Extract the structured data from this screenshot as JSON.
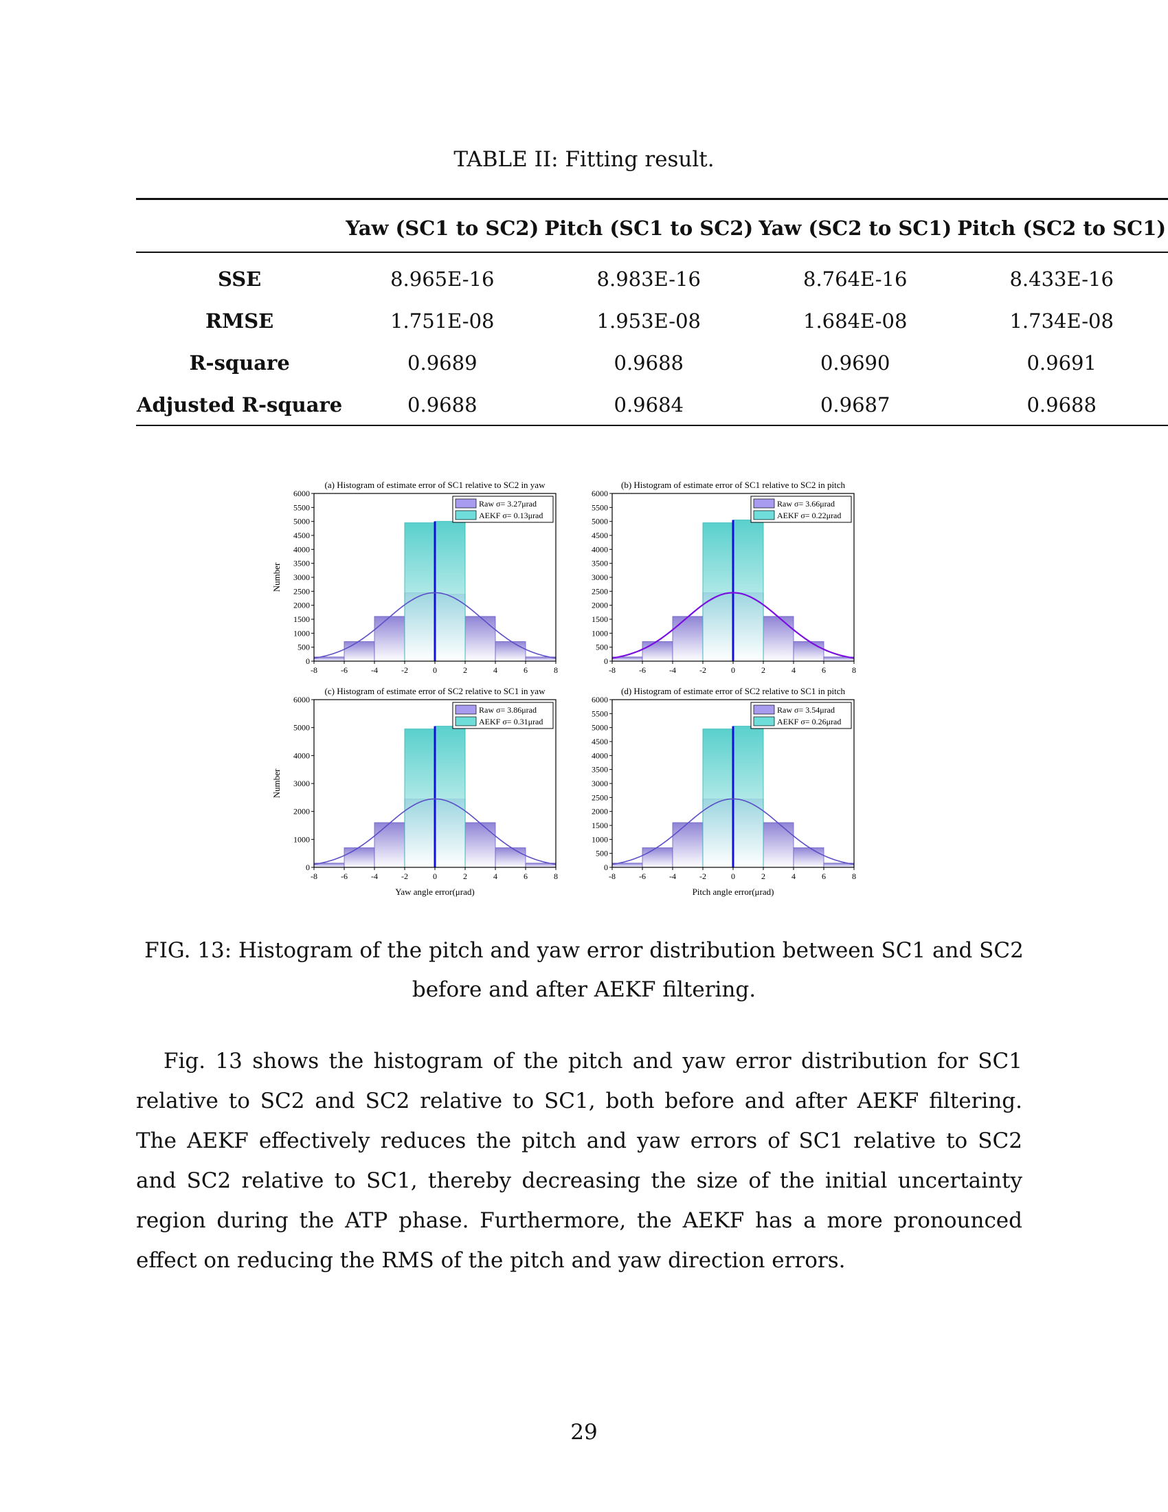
{
  "table": {
    "caption": "TABLE II: Fitting result.",
    "headers": [
      "",
      "Yaw (SC1 to SC2)",
      "Pitch (SC1 to SC2)",
      "Yaw (SC2 to SC1)",
      "Pitch (SC2 to SC1)"
    ],
    "rows": [
      {
        "label": "SSE",
        "values": [
          "8.965E-16",
          "8.983E-16",
          "8.764E-16",
          "8.433E-16"
        ]
      },
      {
        "label": "RMSE",
        "values": [
          "1.751E-08",
          "1.953E-08",
          "1.684E-08",
          "1.734E-08"
        ]
      },
      {
        "label": "R-square",
        "values": [
          "0.9689",
          "0.9688",
          "0.9690",
          "0.9691"
        ]
      },
      {
        "label": "Adjusted R-square",
        "values": [
          "0.9688",
          "0.9684",
          "0.9687",
          "0.9688"
        ]
      }
    ]
  },
  "chart_data": [
    {
      "type": "bar",
      "title": "(a) Histogram of estimate error of SC1 relative to SC2 in yaw",
      "ylabel": "Number",
      "xlabel": "",
      "xlim": [
        -8,
        8
      ],
      "ylim": [
        0,
        6000
      ],
      "xticks": [
        "-8",
        "-6",
        "-4",
        "-2",
        "0",
        "2",
        "4",
        "6",
        "8"
      ],
      "yticks": [
        "0",
        "500",
        "1000",
        "1500",
        "2000",
        "2500",
        "3000",
        "3500",
        "4000",
        "4500",
        "5000",
        "5500",
        "6000"
      ],
      "legend": [
        "Raw σ= 3.27μrad",
        "AEKF σ= 0.13μrad"
      ],
      "legend_position": "top-right",
      "series": [
        {
          "name": "Raw",
          "bin_edges": [
            -8,
            -6,
            -4,
            -2,
            0,
            2,
            4,
            6,
            8
          ],
          "values": [
            150,
            700,
            1600,
            2450,
            2400,
            1600,
            700,
            150
          ],
          "fit": "normal",
          "fit_peak": 2450
        },
        {
          "name": "AEKF",
          "bin_edges": [
            -2,
            0,
            2
          ],
          "values": [
            4950,
            5000
          ]
        }
      ]
    },
    {
      "type": "bar",
      "title": "(b) Histogram of estimate error of SC1 relative to SC2 in pitch",
      "ylabel": "",
      "xlabel": "",
      "xlim": [
        -8,
        8
      ],
      "ylim": [
        0,
        6000
      ],
      "xticks": [
        "-8",
        "-6",
        "-4",
        "-2",
        "0",
        "2",
        "4",
        "6",
        "8"
      ],
      "yticks": [
        "0",
        "500",
        "1000",
        "1500",
        "2000",
        "2500",
        "3000",
        "3500",
        "4000",
        "4500",
        "5000",
        "5500",
        "6000"
      ],
      "legend": [
        "Raw σ= 3.66μrad",
        "AEKF σ= 0.22μrad"
      ],
      "legend_position": "top-right",
      "series": [
        {
          "name": "Raw",
          "bin_edges": [
            -8,
            -6,
            -4,
            -2,
            0,
            2,
            4,
            6,
            8
          ],
          "values": [
            150,
            700,
            1600,
            2450,
            2450,
            1600,
            700,
            150
          ],
          "fit": "normal",
          "fit_peak": 2450
        },
        {
          "name": "AEKF",
          "bin_edges": [
            -2,
            0,
            2
          ],
          "values": [
            4950,
            5050
          ]
        }
      ]
    },
    {
      "type": "bar",
      "title": "(c) Histogram of estimate error of SC2 relative to SC1 in yaw",
      "ylabel": "Number",
      "xlabel": "Yaw angle error(μrad)",
      "xlim": [
        -8,
        8
      ],
      "ylim": [
        0,
        6000
      ],
      "xticks": [
        "-8",
        "-6",
        "-4",
        "-2",
        "0",
        "2",
        "4",
        "6",
        "8"
      ],
      "yticks": [
        "0",
        "1000",
        "2000",
        "3000",
        "4000",
        "5000",
        "6000"
      ],
      "legend": [
        "Raw σ= 3.86μrad",
        "AEKF σ= 0.31μrad"
      ],
      "legend_position": "top-right",
      "series": [
        {
          "name": "Raw",
          "bin_edges": [
            -8,
            -6,
            -4,
            -2,
            0,
            2,
            4,
            6,
            8
          ],
          "values": [
            150,
            700,
            1600,
            2450,
            2450,
            1600,
            700,
            150
          ],
          "fit": "normal",
          "fit_peak": 2450
        },
        {
          "name": "AEKF",
          "bin_edges": [
            -2,
            0,
            2
          ],
          "values": [
            4950,
            5050
          ]
        }
      ]
    },
    {
      "type": "bar",
      "title": "(d) Histogram of estimate error of SC2 relative to SC1 in pitch",
      "ylabel": "",
      "xlabel": "Pitch angle error(μrad)",
      "xlim": [
        -8,
        8
      ],
      "ylim": [
        0,
        6000
      ],
      "xticks": [
        "-8",
        "-6",
        "-4",
        "-2",
        "0",
        "2",
        "4",
        "6",
        "8"
      ],
      "yticks": [
        "0",
        "500",
        "1000",
        "1500",
        "2000",
        "2500",
        "3000",
        "3500",
        "4000",
        "4500",
        "5000",
        "5500",
        "6000"
      ],
      "legend": [
        "Raw σ= 3.54μrad",
        "AEKF σ= 0.26μrad"
      ],
      "legend_position": "top-right",
      "series": [
        {
          "name": "Raw",
          "bin_edges": [
            -8,
            -6,
            -4,
            -2,
            0,
            2,
            4,
            6,
            8
          ],
          "values": [
            150,
            700,
            1600,
            2450,
            2450,
            1600,
            700,
            150
          ],
          "fit": "normal",
          "fit_peak": 2450
        },
        {
          "name": "AEKF",
          "bin_edges": [
            -2,
            0,
            2
          ],
          "values": [
            4950,
            5050
          ]
        }
      ]
    }
  ],
  "colors": {
    "raw_fill": "#8f84d6",
    "raw_fit": "#5a4fc7",
    "aekf_fill": "#3dc8c4",
    "aekf_line": "#1010d8",
    "legend_raw": "#a89cf0",
    "legend_aekf": "#6fdedb"
  },
  "figure_caption": "FIG. 13: Histogram of the pitch and yaw error distribution between SC1 and SC2 before and after AEKF filtering.",
  "paragraph": "Fig. 13 shows the histogram of the pitch and yaw error distribution for SC1 relative to SC2 and SC2 relative to SC1, both before and after AEKF filtering. The AEKF effectively reduces the pitch and yaw errors of SC1 relative to SC2 and SC2 relative to SC1, thereby decreasing the size of the initial uncertainty region during the ATP phase. Furthermore, the AEKF has a more pronounced effect on reducing the RMS of the pitch and yaw direction errors.",
  "page_number": "29"
}
